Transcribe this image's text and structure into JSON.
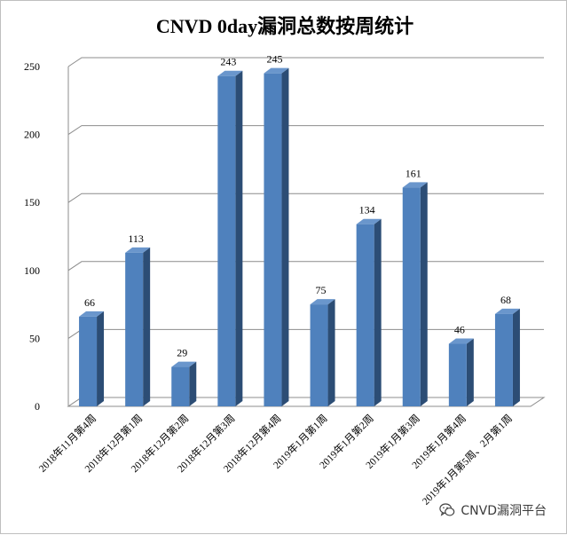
{
  "chart_data": {
    "type": "bar",
    "title": "CNVD 0day漏洞总数按周统计",
    "categories": [
      "2018年11月第4周",
      "2018年12月第1周",
      "2018年12月第2周",
      "2018年12月第3周",
      "2018年12月第4周",
      "2019年1月第1周",
      "2019年1月第2周",
      "2019年1月第3周",
      "2019年1月第4周",
      "2019年1月第5周、2月第1周"
    ],
    "values": [
      66,
      113,
      29,
      243,
      245,
      75,
      134,
      161,
      46,
      68
    ],
    "yticks": [
      "0",
      "50",
      "100",
      "150",
      "200",
      "250"
    ],
    "ylim": [
      0,
      250
    ],
    "xlabel": "",
    "ylabel": "",
    "grid": true,
    "legend": "none",
    "bar_color": "#4f81bd",
    "bar_side_color": "#2c4d75",
    "bar_top_color": "#6a96cc"
  },
  "watermark": {
    "text": "CNVD漏洞平台",
    "icon": "wechat-icon"
  }
}
